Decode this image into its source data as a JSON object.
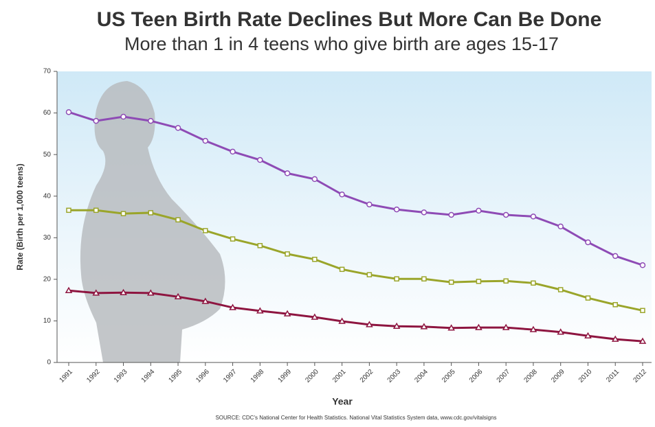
{
  "chart_data": {
    "type": "line",
    "title": "US Teen Birth Rate Declines But More Can Be Done",
    "subtitle": "More than 1 in 4 teens who give birth are ages 15-17",
    "x_label": "Year",
    "y_label": "Rate (Birth per 1,000 teens)",
    "source": "SOURCE: CDC's National Center for Health Statistics. National Vital Statistics System data, www.cdc.gov/vitalsigns",
    "categories": [
      "1991",
      "1992",
      "1993",
      "1994",
      "1995",
      "1996",
      "1997",
      "1998",
      "1999",
      "2000",
      "2001",
      "2002",
      "2003",
      "2004",
      "2005",
      "2006",
      "2007",
      "2008",
      "2009",
      "2010",
      "2011",
      "2012"
    ],
    "ylim": [
      0,
      70
    ],
    "yticks": [
      0,
      10,
      20,
      30,
      40,
      50,
      60,
      70
    ],
    "series": [
      {
        "color": "#8e4bb5",
        "marker": "circle",
        "values": [
          60.2,
          58.1,
          59.1,
          58.1,
          56.4,
          53.3,
          50.7,
          48.7,
          45.5,
          44.1,
          40.4,
          38.0,
          36.8,
          36.1,
          35.5,
          36.5,
          35.5,
          35.1,
          32.7,
          28.9,
          25.6,
          23.4
        ]
      },
      {
        "color": "#9aa52a",
        "marker": "square",
        "values": [
          36.6,
          36.6,
          35.8,
          36.0,
          34.3,
          31.7,
          29.7,
          28.1,
          26.1,
          24.8,
          22.4,
          21.1,
          20.1,
          20.1,
          19.3,
          19.5,
          19.6,
          19.1,
          17.5,
          15.5,
          13.9,
          12.5
        ]
      },
      {
        "color": "#8e1540",
        "marker": "triangle",
        "values": [
          17.3,
          16.7,
          16.8,
          16.7,
          15.8,
          14.7,
          13.2,
          12.4,
          11.7,
          10.9,
          9.9,
          9.1,
          8.7,
          8.6,
          8.3,
          8.4,
          8.4,
          7.9,
          7.3,
          6.4,
          5.6,
          5.1
        ]
      }
    ]
  }
}
